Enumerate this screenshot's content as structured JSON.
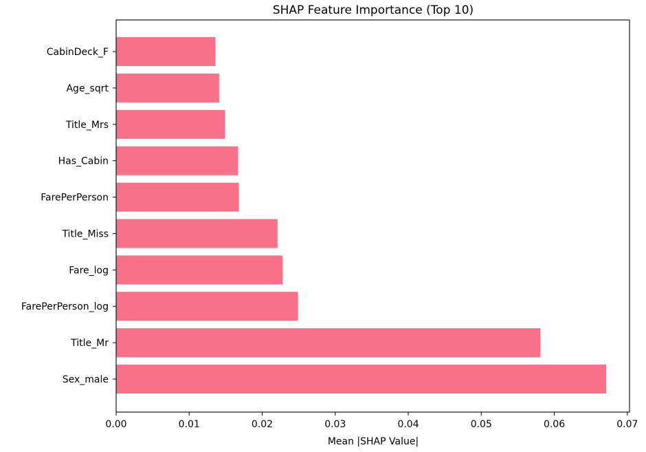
{
  "chart_data": {
    "type": "bar",
    "orientation": "horizontal",
    "title": "SHAP Feature Importance (Top 10)",
    "xlabel": "Mean |SHAP Value|",
    "ylabel": "",
    "categories": [
      "Sex_male",
      "Title_Mr",
      "FarePerPerson_log",
      "Fare_log",
      "Title_Miss",
      "FarePerPerson",
      "Has_Cabin",
      "Title_Mrs",
      "Age_sqrt",
      "CabinDeck_F"
    ],
    "values": [
      0.0671,
      0.0581,
      0.0249,
      0.0228,
      0.0221,
      0.0168,
      0.0167,
      0.0149,
      0.0141,
      0.0136
    ],
    "xlim": [
      0.0,
      0.0703
    ],
    "xticks": [
      "0.00",
      "0.01",
      "0.02",
      "0.03",
      "0.04",
      "0.05",
      "0.06",
      "0.07"
    ],
    "bar_color": "#f77189",
    "grid": false,
    "legend": "none"
  }
}
